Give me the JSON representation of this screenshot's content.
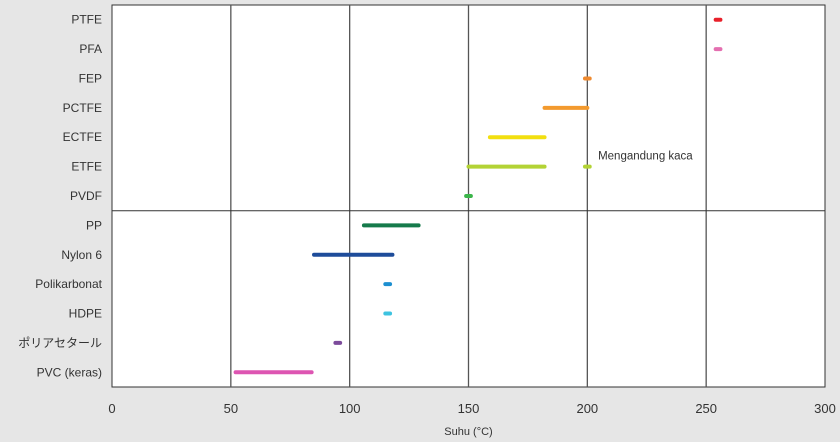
{
  "chart_data": {
    "type": "range-bar",
    "title": "",
    "xlabel": "Suhu (°C)",
    "ylabel": "",
    "xlim": [
      0,
      300
    ],
    "xticks": [
      0,
      50,
      100,
      150,
      200,
      250,
      300
    ],
    "grid": "vertical",
    "categories": [
      "PTFE",
      "PFA",
      "FEP",
      "PCTFE",
      "ECTFE",
      "ETFE",
      "PVDF",
      "PP",
      "Nylon 6",
      "Polikarbonat",
      "HDPE",
      "ポリアセタール",
      "PVC (keras)"
    ],
    "ranges": [
      {
        "category": "PTFE",
        "start": 254,
        "end": 256,
        "color": "#e8202a"
      },
      {
        "category": "PFA",
        "start": 254,
        "end": 256,
        "color": "#e46fb0"
      },
      {
        "category": "FEP",
        "start": 199,
        "end": 201,
        "color": "#ef8a2f"
      },
      {
        "category": "PCTFE",
        "start": 182,
        "end": 200,
        "color": "#f39a2e"
      },
      {
        "category": "ECTFE",
        "start": 159,
        "end": 182,
        "color": "#f2df10"
      },
      {
        "category": "ETFE",
        "start": 150,
        "end": 182,
        "color": "#b3d335"
      },
      {
        "category": "ETFE",
        "start": 199,
        "end": 201,
        "color": "#b3d335"
      },
      {
        "category": "PVDF",
        "start": 149,
        "end": 151,
        "color": "#3bb54a"
      },
      {
        "category": "PP",
        "start": 106,
        "end": 129,
        "color": "#157a4b"
      },
      {
        "category": "Nylon 6",
        "start": 85,
        "end": 118,
        "color": "#1e4c9a"
      },
      {
        "category": "Polikarbonat",
        "start": 115,
        "end": 117,
        "color": "#1c8fd0"
      },
      {
        "category": "HDPE",
        "start": 115,
        "end": 117,
        "color": "#3dc3e0"
      },
      {
        "category": "ポリアセタール",
        "start": 94,
        "end": 96,
        "color": "#7c4b9b"
      },
      {
        "category": "PVC (keras)",
        "start": 52,
        "end": 84,
        "color": "#dd55b2"
      }
    ],
    "annotations": [
      {
        "text": "Mengandung kaca",
        "category": "ETFE",
        "x": 202
      }
    ],
    "separator_after": "PVDF"
  }
}
